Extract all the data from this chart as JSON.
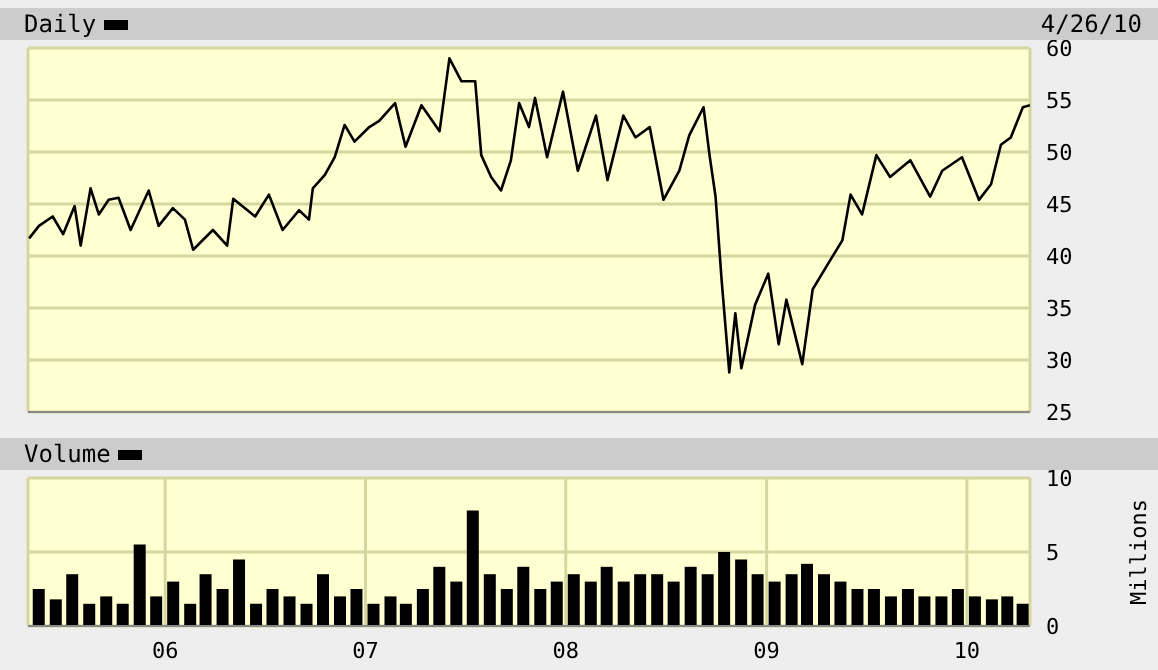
{
  "chart_data": [
    {
      "type": "line",
      "legend": "top left",
      "grid": true,
      "tick_labels": "y",
      "annotations": [
        "4/26/10"
      ],
      "xlim": [
        "2005-04-26",
        "2010-04-26"
      ],
      "xticks": [
        {
          "value": "2006-01-01",
          "label": null
        },
        {
          "value": "2007-01-01",
          "label": null
        },
        {
          "value": "2008-01-01",
          "label": null
        },
        {
          "value": "2009-01-01",
          "label": null
        },
        {
          "value": "2010-01-01",
          "label": null
        }
      ],
      "ylim": [
        25,
        60
      ],
      "yticks": [
        25,
        30,
        35,
        40,
        45,
        50,
        55,
        60
      ],
      "series": [
        {
          "name": "Daily",
          "color": "#000000",
          "x": [
            "2005-04-28",
            "2005-05-16",
            "2005-06-10",
            "2005-06-29",
            "2005-07-20",
            "2005-07-31",
            "2005-08-18",
            "2005-09-02",
            "2005-09-20",
            "2005-10-08",
            "2005-10-30",
            "2005-12-02",
            "2005-12-20",
            "2006-01-15",
            "2006-02-06",
            "2006-02-21",
            "2006-03-29",
            "2006-04-24",
            "2006-05-05",
            "2006-06-14",
            "2006-07-09",
            "2006-08-03",
            "2006-09-02",
            "2006-09-20",
            "2006-09-27",
            "2006-10-19",
            "2006-11-06",
            "2006-11-24",
            "2006-12-12",
            "2007-01-08",
            "2007-01-26",
            "2007-02-24",
            "2007-03-15",
            "2007-04-13",
            "2007-05-16",
            "2007-06-03",
            "2007-06-25",
            "2007-07-20",
            "2007-07-31",
            "2007-08-18",
            "2007-09-05",
            "2007-09-23",
            "2007-10-08",
            "2007-10-26",
            "2007-11-06",
            "2007-11-28",
            "2007-12-27",
            "2008-01-23",
            "2008-02-25",
            "2008-03-17",
            "2008-04-15",
            "2008-05-07",
            "2008-06-02",
            "2008-06-27",
            "2008-07-26",
            "2008-08-13",
            "2008-09-08",
            "2008-09-19",
            "2008-09-30",
            "2008-10-11",
            "2008-10-25",
            "2008-11-05",
            "2008-11-16",
            "2008-12-11",
            "2009-01-04",
            "2009-01-23",
            "2009-02-06",
            "2009-03-07",
            "2009-03-26",
            "2009-04-27",
            "2009-05-19",
            "2009-06-03",
            "2009-06-24",
            "2009-07-20",
            "2009-08-14",
            "2009-09-20",
            "2009-10-26",
            "2009-11-17",
            "2009-12-23",
            "2010-01-23",
            "2010-02-14",
            "2010-03-04",
            "2010-03-22",
            "2010-04-13",
            "2010-04-26"
          ],
          "values": [
            41.7,
            42.9,
            43.8,
            42.1,
            44.8,
            41,
            46.5,
            44,
            45.4,
            45.6,
            42.5,
            46.3,
            42.9,
            44.6,
            43.5,
            40.6,
            42.5,
            41,
            45.5,
            43.8,
            45.9,
            42.5,
            44.4,
            43.5,
            46.5,
            47.8,
            49.5,
            52.6,
            51,
            52.4,
            53,
            54.7,
            50.5,
            54.5,
            52,
            59,
            56.8,
            56.8,
            49.7,
            47.6,
            46.3,
            49.2,
            54.7,
            52.4,
            55.2,
            49.5,
            55.8,
            48.2,
            53.5,
            47.3,
            53.5,
            51.4,
            52.4,
            45.4,
            48.2,
            51.6,
            54.3,
            49.7,
            45.7,
            37.7,
            28.8,
            34.5,
            29.2,
            35.3,
            38.3,
            31.5,
            35.8,
            29.6,
            36.8,
            39.6,
            41.5,
            45.9,
            44,
            49.7,
            47.6,
            49.2,
            45.7,
            48.2,
            49.5,
            45.4,
            46.9,
            50.7,
            51.4,
            54.3,
            54.5
          ]
        }
      ]
    },
    {
      "type": "bar",
      "legend": "top left",
      "grid": true,
      "ylabel": "Millions",
      "xlim": [
        "2005-04-26",
        "2010-04-26"
      ],
      "xticks": [
        {
          "value": "2006-01-01",
          "label": "06"
        },
        {
          "value": "2007-01-01",
          "label": "07"
        },
        {
          "value": "2008-01-01",
          "label": "08"
        },
        {
          "value": "2009-01-01",
          "label": "09"
        },
        {
          "value": "2010-01-01",
          "label": "10"
        }
      ],
      "ylim": [
        0,
        10
      ],
      "yticks": [
        0,
        5,
        10
      ],
      "series": [
        {
          "name": "Volume",
          "color": "#000000",
          "x": [
            "2005-05-15",
            "2005-06-15",
            "2005-07-15",
            "2005-08-15",
            "2005-09-15",
            "2005-10-15",
            "2005-11-15",
            "2005-12-15",
            "2006-01-15",
            "2006-02-15",
            "2006-03-15",
            "2006-04-15",
            "2006-05-15",
            "2006-06-15",
            "2006-07-15",
            "2006-08-15",
            "2006-09-15",
            "2006-10-15",
            "2006-11-15",
            "2006-12-15",
            "2007-01-15",
            "2007-02-15",
            "2007-03-15",
            "2007-04-15",
            "2007-05-15",
            "2007-06-15",
            "2007-07-15",
            "2007-08-15",
            "2007-09-15",
            "2007-10-15",
            "2007-11-15",
            "2007-12-15",
            "2008-01-15",
            "2008-02-15",
            "2008-03-15",
            "2008-04-15",
            "2008-05-15",
            "2008-06-15",
            "2008-07-15",
            "2008-08-15",
            "2008-09-15",
            "2008-10-15",
            "2008-11-15",
            "2008-12-15",
            "2009-01-15",
            "2009-02-15",
            "2009-03-15",
            "2009-04-15",
            "2009-05-15",
            "2009-06-15",
            "2009-07-15",
            "2009-08-15",
            "2009-09-15",
            "2009-10-15",
            "2009-11-15",
            "2009-12-15",
            "2010-01-15",
            "2010-02-15",
            "2010-03-15",
            "2010-04-12"
          ],
          "values": [
            2.5,
            1.8,
            3.5,
            1.5,
            2,
            1.5,
            5.5,
            2,
            3,
            1.5,
            3.5,
            2.5,
            4.5,
            1.5,
            2.5,
            2,
            1.5,
            3.5,
            2,
            2.5,
            1.5,
            2,
            1.5,
            2.5,
            4,
            3,
            7.8,
            3.5,
            2.5,
            4,
            2.5,
            3,
            3.5,
            3,
            4,
            3,
            3.5,
            3.5,
            3,
            4,
            3.5,
            5,
            4.5,
            3.5,
            3,
            3.5,
            4.2,
            3.5,
            3,
            2.5,
            2.5,
            2,
            2.5,
            2,
            2,
            2.5,
            2,
            1.8,
            2,
            1.5
          ]
        }
      ]
    }
  ]
}
